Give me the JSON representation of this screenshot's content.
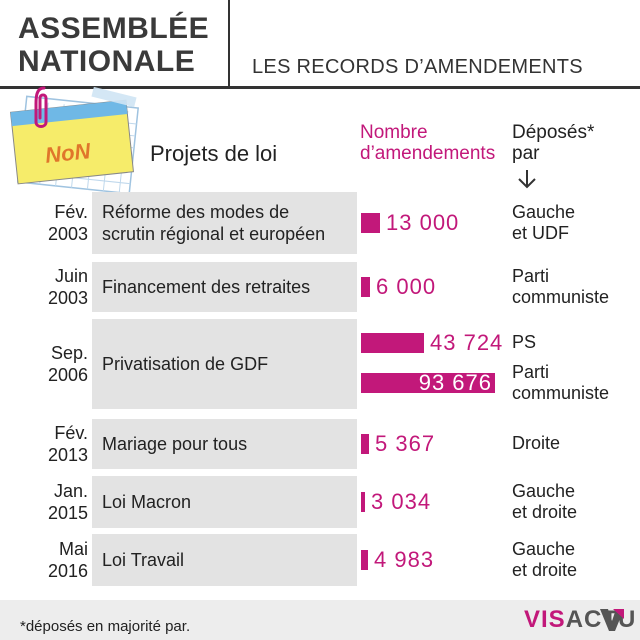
{
  "header": {
    "title_line1": "ASSEMBLÉE",
    "title_line2": "NATIONALE",
    "subtitle": "LES RECORDS D’AMENDEMENTS"
  },
  "illustration": {
    "note_text": "NoN"
  },
  "columns": {
    "projets": "Projets de loi",
    "nombre_line1": "Nombre",
    "nombre_line2": "d’amendements",
    "deposes_line1": "Déposés*",
    "deposes_line2": "par"
  },
  "chart_data": {
    "type": "bar",
    "orientation": "horizontal",
    "title": "LES RECORDS D’AMENDEMENTS",
    "rows": [
      {
        "date_line1": "Fév.",
        "date_line2": "2003",
        "law_line1": "Réforme des modes de",
        "law_line2": "scrutin régional et européen",
        "amendments": [
          {
            "value": 13000,
            "label": "13 000",
            "depose_line1": "Gauche",
            "depose_line2": "et UDF"
          }
        ]
      },
      {
        "date_line1": "Juin",
        "date_line2": "2003",
        "law_line1": "Financement des retraites",
        "law_line2": "",
        "amendments": [
          {
            "value": 6000,
            "label": "6 000",
            "depose_line1": "Parti",
            "depose_line2": "communiste"
          }
        ]
      },
      {
        "date_line1": "Sep.",
        "date_line2": "2006",
        "law_line1": "Privatisation de GDF",
        "law_line2": "",
        "amendments": [
          {
            "value": 43724,
            "label": "43 724",
            "depose_line1": "PS",
            "depose_line2": ""
          },
          {
            "value": 93676,
            "label": "93 676",
            "depose_line1": "Parti",
            "depose_line2": "communiste"
          }
        ]
      },
      {
        "date_line1": "Fév.",
        "date_line2": "2013",
        "law_line1": "Mariage pour tous",
        "law_line2": "",
        "amendments": [
          {
            "value": 5367,
            "label": "5 367",
            "depose_line1": "Droite",
            "depose_line2": ""
          }
        ]
      },
      {
        "date_line1": "Jan.",
        "date_line2": "2015",
        "law_line1": "Loi Macron",
        "law_line2": "",
        "amendments": [
          {
            "value": 3034,
            "label": "3 034",
            "depose_line1": "Gauche",
            "depose_line2": "et droite"
          }
        ]
      },
      {
        "date_line1": "Mai",
        "date_line2": "2016",
        "law_line1": "Loi Travail",
        "law_line2": "",
        "amendments": [
          {
            "value": 4983,
            "label": "4 983",
            "depose_line1": "Gauche",
            "depose_line2": "et droite"
          }
        ]
      }
    ],
    "xlim": [
      0,
      93676
    ]
  },
  "footer": {
    "footnote": "*déposés en majorité par.",
    "brand_vis": "VIS",
    "brand_actu": "ACTU"
  },
  "colors": {
    "accent": "#c2187a",
    "band": "#e3e3e3",
    "footer_band": "#ededed",
    "text": "#222222"
  }
}
